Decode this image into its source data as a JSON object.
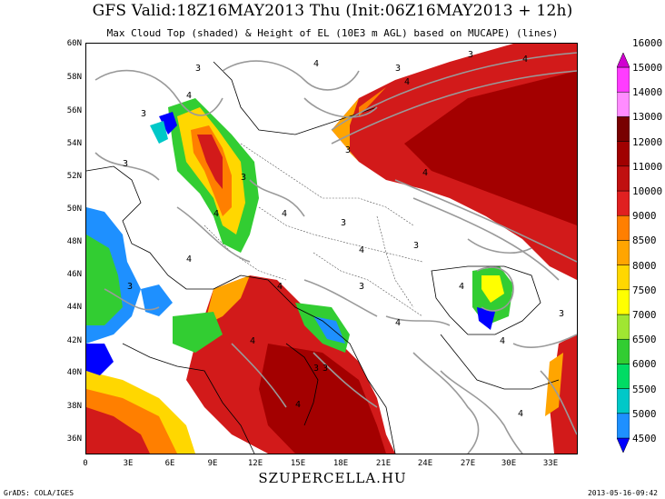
{
  "title": "GFS Valid:18Z16MAY2013 Thu (Init:06Z16MAY2013 + 12h)",
  "subtitle": "Max Cloud Top (shaded) & Height of EL (10E3 m AGL) based on MUCAPE) (lines)",
  "lat_labels": [
    "60N",
    "58N",
    "56N",
    "54N",
    "52N",
    "50N",
    "48N",
    "46N",
    "44N",
    "42N",
    "40N",
    "38N",
    "36N"
  ],
  "lon_labels": [
    "0",
    "3E",
    "6E",
    "9E",
    "12E",
    "15E",
    "18E",
    "21E",
    "24E",
    "27E",
    "30E",
    "33E"
  ],
  "colorbar": {
    "levels": [
      "4500",
      "5000",
      "5500",
      "6000",
      "6500",
      "7000",
      "7500",
      "8000",
      "8500",
      "9000",
      "10000",
      "11000",
      "12000",
      "13000",
      "14000",
      "15000",
      "16000"
    ],
    "colors": [
      "#0000ff",
      "#1e90ff",
      "#00c8c8",
      "#00dc64",
      "#32cd32",
      "#a0e632",
      "#ffff00",
      "#ffd700",
      "#ffa500",
      "#ff7f00",
      "#e02020",
      "#c01010",
      "#a00000",
      "#780000",
      "#ff8cff",
      "#ff3cff",
      "#d000d0"
    ]
  },
  "credit": "SZUPERCELLA.HU",
  "grads": "GrADS: COLA/IGES",
  "timestamp": "2013-05-16-09:42",
  "el_labels": [
    "3",
    "4",
    "3",
    "4",
    "3",
    "4",
    "4",
    "3",
    "4",
    "3",
    "4",
    "4",
    "3",
    "4",
    "3",
    "4",
    "3",
    "4",
    "4",
    "3",
    "4",
    "3",
    "4",
    "3",
    "4",
    "4",
    "3"
  ]
}
